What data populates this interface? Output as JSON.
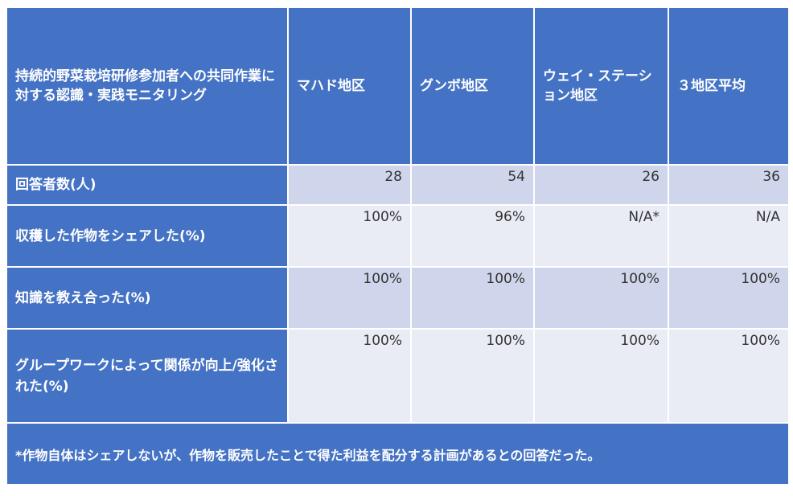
{
  "table": {
    "corner_label": "持続的野菜栽培研修参加者への共同作業に対する認識・実践モニタリング",
    "columns": [
      "マハド地区",
      "グンボ地区",
      "ウェイ・ステーション地区",
      "３地区平均"
    ],
    "rows": [
      {
        "label": "回答者数(人)",
        "values": [
          "28",
          "54",
          "26",
          "36"
        ]
      },
      {
        "label": "収穫した作物をシェアした(%)",
        "values": [
          "100%",
          "96%",
          "N/A*",
          "N/A"
        ]
      },
      {
        "label": "知識を教え合った(%)",
        "values": [
          "100%",
          "100%",
          "100%",
          "100%"
        ]
      },
      {
        "label": "グループワークによって関係が向上/強化された(%)",
        "values": [
          "100%",
          "100%",
          "100%",
          "100%"
        ]
      }
    ],
    "footnote": "*作物自体はシェアしないが、作物を販売したことで得た利益を配分する計画があるとの回答だった。"
  },
  "colors": {
    "header_bg": "#4472c4",
    "band_dark": "#cfd5ea",
    "band_light": "#e9ebf5",
    "border": "#ffffff"
  }
}
